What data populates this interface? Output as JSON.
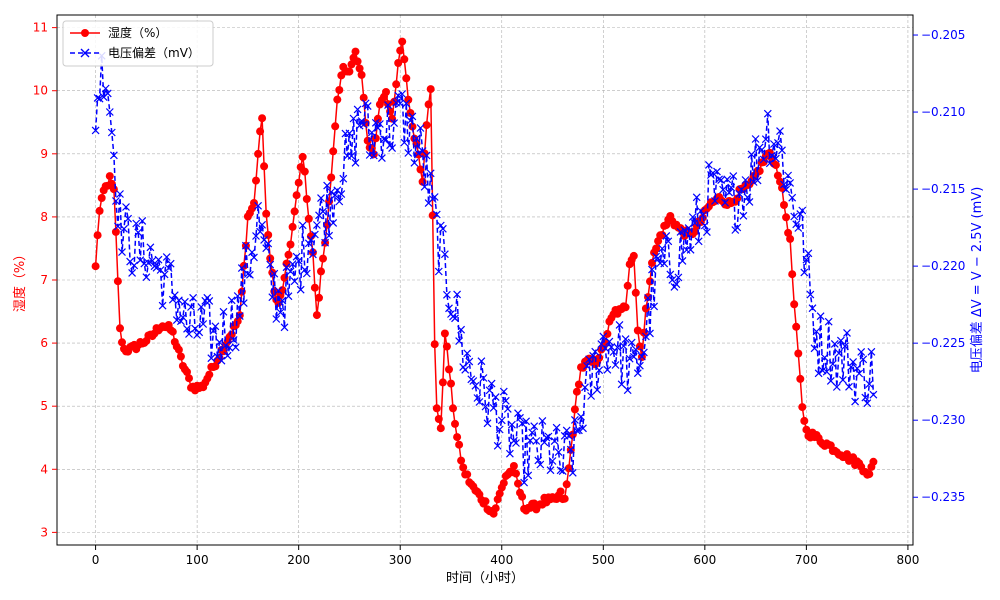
{
  "chart_data": {
    "type": "line",
    "xlabel": "时间（小时）",
    "ylabel_left": "湿度（%）",
    "ylabel_right": "电压偏差  ΔV = V − 2.5V (mV)",
    "xlim": [
      -38,
      805
    ],
    "ylim_left": [
      2.8,
      11.2
    ],
    "ylim_right": [
      -0.2381,
      -0.2037
    ],
    "x_ticks": [
      0,
      100,
      200,
      300,
      400,
      500,
      600,
      700,
      800
    ],
    "y_left_ticks": [
      3,
      4,
      5,
      6,
      7,
      8,
      9,
      10,
      11
    ],
    "y_right_ticks": [
      -0.235,
      -0.23,
      -0.225,
      -0.22,
      -0.215,
      -0.21,
      -0.205
    ],
    "y_right_tick_labels": [
      "−0.235",
      "−0.230",
      "−0.225",
      "−0.220",
      "−0.215",
      "−0.210",
      "−0.205"
    ],
    "grid": true,
    "legend_position": "top-left",
    "colors": {
      "humidity": "#ff0000",
      "voltage": "#0000ff",
      "right_axis": "#0000ff",
      "left_axis": "#ff0000"
    },
    "series": [
      {
        "name": "湿度（%）",
        "axis": "left",
        "marker": "circle",
        "line": "solid",
        "key_x": [
          0,
          3,
          8,
          14,
          18,
          21,
          24,
          28,
          35,
          45,
          55,
          65,
          75,
          85,
          95,
          105,
          115,
          125,
          135,
          142,
          146,
          150,
          156,
          160,
          164,
          168,
          172,
          176,
          180,
          186,
          192,
          198,
          204,
          210,
          214,
          218,
          222,
          226,
          232,
          238,
          244,
          250,
          256,
          262,
          268,
          274,
          280,
          286,
          292,
          298,
          302,
          306,
          310,
          314,
          318,
          322,
          326,
          330,
          334,
          336,
          340,
          344,
          348,
          352,
          356,
          362,
          372,
          382,
          392,
          398,
          404,
          412,
          422,
          432,
          442,
          452,
          458,
          462,
          466,
          470,
          474,
          478,
          484,
          492,
          500,
          506,
          512,
          518,
          522,
          526,
          530,
          534,
          538,
          542,
          548,
          556,
          566,
          575,
          585,
          595,
          605,
          615,
          625,
          635,
          645,
          655,
          662,
          668,
          674,
          678,
          684,
          688,
          692,
          696,
          700,
          710,
          720,
          730,
          740,
          750,
          758,
          762,
          766
        ],
        "key_y": [
          7.2,
          8.0,
          8.4,
          8.6,
          8.4,
          7.4,
          6.2,
          5.9,
          5.9,
          6.0,
          6.1,
          6.3,
          6.2,
          5.7,
          5.3,
          5.3,
          5.6,
          5.9,
          6.2,
          6.4,
          7.2,
          8.0,
          8.2,
          9.0,
          9.6,
          8.0,
          7.4,
          6.8,
          6.6,
          7.0,
          7.6,
          8.3,
          9.0,
          8.0,
          7.4,
          6.4,
          7.1,
          7.6,
          8.6,
          9.8,
          10.4,
          10.3,
          10.6,
          10.2,
          9.2,
          9.0,
          9.8,
          10.0,
          9.5,
          10.4,
          10.8,
          10.2,
          9.6,
          9.3,
          9.0,
          8.6,
          9.5,
          10.0,
          6.0,
          5.0,
          4.6,
          6.2,
          5.6,
          5.0,
          4.5,
          4.0,
          3.7,
          3.5,
          3.3,
          3.6,
          3.9,
          4.0,
          3.4,
          3.4,
          3.5,
          3.5,
          3.6,
          3.5,
          4.0,
          4.6,
          5.2,
          5.6,
          5.7,
          5.7,
          5.9,
          6.3,
          6.5,
          6.5,
          6.6,
          7.3,
          7.4,
          6.2,
          5.8,
          6.5,
          7.3,
          7.7,
          8.0,
          7.8,
          7.7,
          7.9,
          8.2,
          8.3,
          8.2,
          8.4,
          8.5,
          8.8,
          9.0,
          8.9,
          8.6,
          8.2,
          7.6,
          6.6,
          5.8,
          5.0,
          4.6,
          4.5,
          4.4,
          4.3,
          4.2,
          4.1,
          4.0,
          3.9,
          4.1
        ]
      },
      {
        "name": "电压偏差（mV）",
        "axis": "right",
        "marker": "x",
        "line": "dashed",
        "key_x": [
          0,
          4,
          8,
          12,
          16,
          20,
          24,
          30,
          40,
          50,
          60,
          70,
          80,
          90,
          100,
          110,
          120,
          130,
          140,
          150,
          160,
          166,
          172,
          180,
          190,
          200,
          210,
          220,
          230,
          240,
          250,
          258,
          264,
          270,
          278,
          286,
          294,
          300,
          308,
          316,
          322,
          328,
          334,
          340,
          346,
          352,
          360,
          370,
          380,
          390,
          400,
          410,
          420,
          430,
          440,
          450,
          460,
          466,
          472,
          480,
          490,
          500,
          510,
          520,
          530,
          540,
          548,
          556,
          566,
          576,
          586,
          596,
          606,
          616,
          626,
          636,
          646,
          656,
          662,
          668,
          674,
          680,
          688,
          694,
          700,
          706,
          712,
          720,
          730,
          740,
          750,
          758,
          764
        ],
        "key_y": [
          -0.21,
          -0.208,
          -0.207,
          -0.208,
          -0.211,
          -0.214,
          -0.217,
          -0.218,
          -0.219,
          -0.219,
          -0.22,
          -0.221,
          -0.222,
          -0.224,
          -0.224,
          -0.224,
          -0.225,
          -0.224,
          -0.223,
          -0.22,
          -0.217,
          -0.219,
          -0.221,
          -0.222,
          -0.222,
          -0.22,
          -0.218,
          -0.217,
          -0.216,
          -0.214,
          -0.213,
          -0.211,
          -0.21,
          -0.212,
          -0.211,
          -0.211,
          -0.211,
          -0.21,
          -0.211,
          -0.212,
          -0.213,
          -0.215,
          -0.217,
          -0.219,
          -0.221,
          -0.222,
          -0.225,
          -0.227,
          -0.228,
          -0.229,
          -0.23,
          -0.231,
          -0.232,
          -0.232,
          -0.232,
          -0.232,
          -0.233,
          -0.232,
          -0.232,
          -0.229,
          -0.227,
          -0.225,
          -0.225,
          -0.226,
          -0.227,
          -0.225,
          -0.222,
          -0.22,
          -0.22,
          -0.219,
          -0.218,
          -0.217,
          -0.215,
          -0.216,
          -0.216,
          -0.215,
          -0.214,
          -0.212,
          -0.211,
          -0.212,
          -0.212,
          -0.214,
          -0.216,
          -0.217,
          -0.22,
          -0.223,
          -0.225,
          -0.225,
          -0.226,
          -0.226,
          -0.227,
          -0.227,
          -0.227
        ]
      }
    ]
  }
}
